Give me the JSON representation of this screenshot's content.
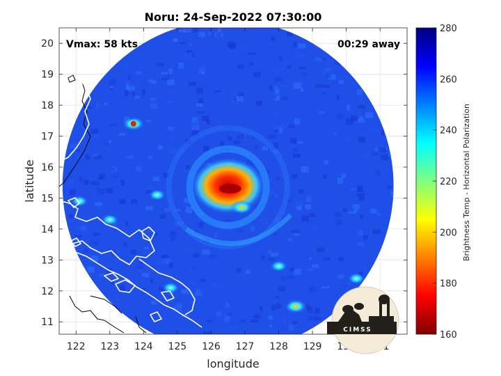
{
  "chart_data": {
    "type": "heatmap",
    "title": "Noru: 24-Sep-2022 07:30:00",
    "xlabel": "longitude",
    "ylabel": "latitude",
    "xlim": [
      121.5,
      131.8
    ],
    "ylim": [
      10.6,
      20.5
    ],
    "xticks": [
      122,
      123,
      124,
      125,
      126,
      127,
      128,
      129,
      130,
      131
    ],
    "yticks": [
      11,
      12,
      13,
      14,
      15,
      16,
      17,
      18,
      19,
      20
    ],
    "grid": true,
    "annotations": {
      "vmax": "Vmax: 58 kts",
      "time_away": "00:29 away"
    },
    "swath": {
      "center_lon": 126.5,
      "center_lat": 15.4,
      "radius_deg": 5.0
    },
    "storm_center": {
      "lon": 126.5,
      "lat": 15.35
    },
    "background_value": 265,
    "features": [
      {
        "lon": 126.5,
        "lat": 15.35,
        "min_value": 168,
        "note": "eyewall core"
      },
      {
        "lon": 126.9,
        "lat": 14.7,
        "min_value": 205
      },
      {
        "lon": 123.7,
        "lat": 17.4,
        "min_value": 195
      },
      {
        "lon": 128.5,
        "lat": 11.5,
        "min_value": 205
      },
      {
        "lon": 124.4,
        "lat": 15.1,
        "min_value": 225
      },
      {
        "lon": 122.1,
        "lat": 14.9,
        "min_value": 220
      },
      {
        "lon": 123.0,
        "lat": 14.3,
        "min_value": 225
      },
      {
        "lon": 124.8,
        "lat": 12.1,
        "min_value": 220
      },
      {
        "lon": 128.0,
        "lat": 12.8,
        "min_value": 230
      },
      {
        "lon": 130.3,
        "lat": 12.4,
        "min_value": 228
      }
    ],
    "colorbar": {
      "label": "Brightness Temp - Horizontal Polarization",
      "range": [
        160,
        280
      ],
      "ticks": [
        160,
        180,
        200,
        220,
        240,
        260,
        280
      ],
      "colormap": "jet",
      "colors": [
        "#800000",
        "#ff0000",
        "#ff8000",
        "#ffff00",
        "#80ff80",
        "#00ffff",
        "#0080ff",
        "#0000ff",
        "#000080"
      ]
    }
  },
  "logo": {
    "text": "CIMSS"
  }
}
